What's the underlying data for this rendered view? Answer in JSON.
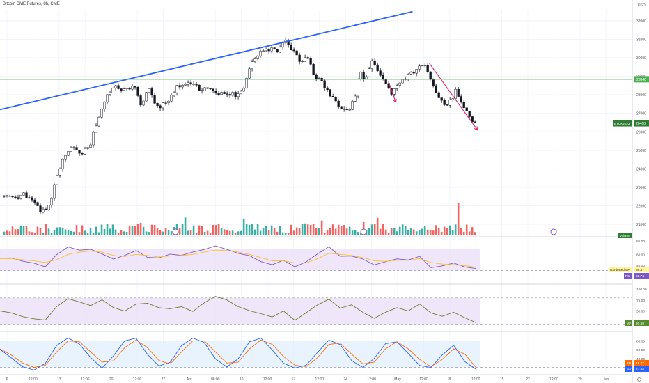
{
  "title": "Bitcoin CME Futures, 8h, CME",
  "currency": "USD",
  "price_axis": {
    "ticks": [
      32000,
      31000,
      30000,
      29000,
      28000,
      27000,
      26000,
      25000,
      24000,
      23000,
      22000,
      21000
    ],
    "range": [
      20400,
      32600
    ]
  },
  "time_axis": {
    "ticks": [
      "6",
      "12:00",
      "13",
      "12:00",
      "20",
      "12:00",
      "27",
      "Apr",
      "06:00",
      "10",
      "12:00",
      "17",
      "12:00",
      "24",
      "12:00",
      "May",
      "12:00",
      "8",
      "12:00",
      "15",
      "22",
      "12:00",
      "29",
      "Jun"
    ],
    "range": [
      0,
      100
    ]
  },
  "markers": {
    "hline_price": 28840,
    "hline_label": "28840",
    "last_label": "BTCK2023",
    "last_value": "26460",
    "last_price": 26460
  },
  "volume_label": "Volume",
  "rsi": {
    "ticks": [
      "85.00",
      "60.00",
      "40.00",
      "20.00"
    ],
    "label1": "RSI-based MA",
    "value1": "36.47",
    "label2": "RSI",
    "value2": "31.74"
  },
  "mfi": {
    "ticks": [
      "100.00",
      "75.00",
      "50.00",
      "25.00"
    ],
    "label": "MF",
    "value": "20.69"
  },
  "stoch": {
    "ticks": [
      "80.00",
      "60.00",
      "40.00",
      "20.00"
    ],
    "label1": "SD",
    "value1": "18.77",
    "label2": "%K",
    "value2": "14.06"
  },
  "colors": {
    "up": "#26a69a",
    "down": "#ef5350",
    "trendline": "#2962ff",
    "hline": "#4caf50",
    "arrow": "#e91e63",
    "rsi_line": "#7e57c2",
    "rsi_ma": "#fbc02d",
    "mfi_line": "#6b7d2c",
    "stoch_k": "#2962ff",
    "stoch_d": "#ff6d00",
    "band_purple": "#e9def7",
    "band_blue": "#e1effc"
  },
  "chart_data": [
    {
      "type": "candlestick",
      "title": "Bitcoin CME Futures, 8h, CME",
      "ylabel": "USD",
      "x_index_range": [
        0,
        100
      ],
      "close_path": [
        {
          "x": 0,
          "y": 22500
        },
        {
          "x": 2,
          "y": 22400
        },
        {
          "x": 4,
          "y": 22600
        },
        {
          "x": 6,
          "y": 22200
        },
        {
          "x": 7.5,
          "y": 21700
        },
        {
          "x": 9,
          "y": 21800
        },
        {
          "x": 10,
          "y": 22600
        },
        {
          "x": 11,
          "y": 23600
        },
        {
          "x": 12,
          "y": 24300
        },
        {
          "x": 14,
          "y": 25300
        },
        {
          "x": 16,
          "y": 24700
        },
        {
          "x": 18,
          "y": 25400
        },
        {
          "x": 20,
          "y": 27100
        },
        {
          "x": 21.5,
          "y": 28100
        },
        {
          "x": 23,
          "y": 28400
        },
        {
          "x": 25,
          "y": 28200
        },
        {
          "x": 27,
          "y": 28500
        },
        {
          "x": 28.5,
          "y": 27500
        },
        {
          "x": 30,
          "y": 28300
        },
        {
          "x": 32,
          "y": 27300
        },
        {
          "x": 34,
          "y": 27600
        },
        {
          "x": 36,
          "y": 28400
        },
        {
          "x": 38,
          "y": 28700
        },
        {
          "x": 40,
          "y": 28400
        },
        {
          "x": 42,
          "y": 28300
        },
        {
          "x": 44,
          "y": 28100
        },
        {
          "x": 46,
          "y": 28100
        },
        {
          "x": 48,
          "y": 28000
        },
        {
          "x": 50,
          "y": 28300
        },
        {
          "x": 51,
          "y": 29500
        },
        {
          "x": 53,
          "y": 30200
        },
        {
          "x": 55,
          "y": 30500
        },
        {
          "x": 57,
          "y": 30300
        },
        {
          "x": 58.5,
          "y": 30900
        },
        {
          "x": 60,
          "y": 30400
        },
        {
          "x": 61.5,
          "y": 29800
        },
        {
          "x": 63,
          "y": 30100
        },
        {
          "x": 64.5,
          "y": 29000
        },
        {
          "x": 66,
          "y": 28800
        },
        {
          "x": 67.5,
          "y": 28100
        },
        {
          "x": 69,
          "y": 27600
        },
        {
          "x": 70.5,
          "y": 27300
        },
        {
          "x": 72,
          "y": 27300
        },
        {
          "x": 73,
          "y": 27800
        },
        {
          "x": 74,
          "y": 29400
        },
        {
          "x": 75,
          "y": 28600
        },
        {
          "x": 76.5,
          "y": 29800
        },
        {
          "x": 78,
          "y": 29300
        },
        {
          "x": 79.5,
          "y": 28500
        },
        {
          "x": 80.5,
          "y": 28000
        },
        {
          "x": 82,
          "y": 28600
        },
        {
          "x": 84,
          "y": 29000
        },
        {
          "x": 86,
          "y": 29400
        },
        {
          "x": 87.5,
          "y": 29700
        },
        {
          "x": 89,
          "y": 28700
        },
        {
          "x": 90,
          "y": 28100
        },
        {
          "x": 91,
          "y": 27600
        },
        {
          "x": 92.5,
          "y": 27500
        },
        {
          "x": 94,
          "y": 28200
        },
        {
          "x": 95,
          "y": 27700
        },
        {
          "x": 96,
          "y": 27300
        },
        {
          "x": 97,
          "y": 26800
        },
        {
          "x": 98,
          "y": 26460
        }
      ],
      "trendline": [
        {
          "x": 0,
          "y": 27200
        },
        {
          "x": 85,
          "y": 32500
        }
      ],
      "arrows": [
        {
          "from": {
            "x": 80,
            "y": 28700
          },
          "to": {
            "x": 81.5,
            "y": 27600
          }
        },
        {
          "from": {
            "x": 88.5,
            "y": 29700
          },
          "to": {
            "x": 98.5,
            "y": 26100
          }
        }
      ]
    },
    {
      "type": "line",
      "title": "RSI",
      "ylim": [
        10,
        90
      ],
      "series": [
        {
          "name": "RSI",
          "values": [
            55,
            52,
            48,
            44,
            38,
            60,
            72,
            66,
            70,
            62,
            50,
            58,
            66,
            55,
            52,
            60,
            58,
            64,
            70,
            75,
            68,
            62,
            58,
            48,
            42,
            50,
            36,
            45,
            62,
            74,
            55,
            58,
            50,
            42,
            46,
            52,
            48,
            58,
            35,
            40,
            42,
            38,
            32
          ]
        },
        {
          "name": "RSI-based MA",
          "values": [
            52,
            52,
            50,
            48,
            45,
            50,
            60,
            64,
            66,
            64,
            58,
            56,
            60,
            58,
            55,
            57,
            58,
            60,
            64,
            68,
            67,
            64,
            60,
            54,
            48,
            48,
            44,
            44,
            52,
            62,
            60,
            58,
            54,
            48,
            47,
            49,
            49,
            52,
            45,
            42,
            41,
            39,
            36
          ]
        }
      ]
    },
    {
      "type": "line",
      "title": "MF",
      "ylim": [
        10,
        105
      ],
      "series": [
        {
          "name": "MF",
          "values": [
            50,
            45,
            38,
            32,
            30,
            60,
            80,
            72,
            62,
            74,
            58,
            50,
            64,
            70,
            60,
            56,
            62,
            50,
            68,
            82,
            74,
            60,
            52,
            44,
            38,
            48,
            30,
            44,
            66,
            78,
            58,
            62,
            46,
            36,
            48,
            58,
            52,
            64,
            44,
            38,
            48,
            34,
            22
          ]
        }
      ]
    },
    {
      "type": "line",
      "title": "SD",
      "ylim": [
        10,
        95
      ],
      "series": [
        {
          "name": "%K",
          "values": [
            60,
            40,
            20,
            15,
            30,
            70,
            88,
            72,
            40,
            20,
            45,
            80,
            85,
            50,
            22,
            30,
            70,
            88,
            75,
            40,
            20,
            40,
            78,
            86,
            60,
            30,
            18,
            25,
            55,
            82,
            70,
            35,
            20,
            40,
            75,
            80,
            50,
            25,
            20,
            50,
            70,
            35,
            14
          ]
        },
        {
          "name": "SD",
          "values": [
            62,
            48,
            30,
            20,
            25,
            55,
            80,
            78,
            55,
            32,
            35,
            65,
            82,
            65,
            36,
            28,
            55,
            80,
            80,
            55,
            30,
            32,
            62,
            82,
            72,
            45,
            25,
            22,
            42,
            72,
            75,
            50,
            28,
            32,
            62,
            78,
            62,
            38,
            22,
            38,
            62,
            50,
            19
          ]
        }
      ]
    }
  ]
}
